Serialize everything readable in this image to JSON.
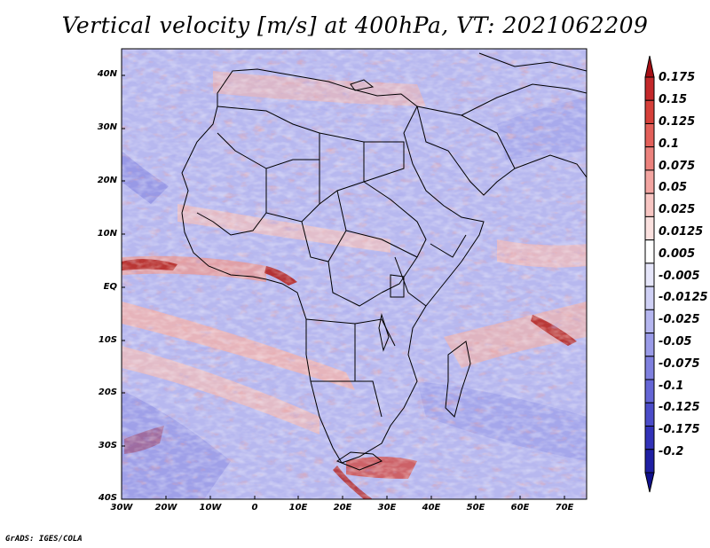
{
  "title": "Vertical velocity [m/s] at 400hPa, VT: 2021062209",
  "credit": "GrADS: IGES/COLA",
  "map": {
    "variable": "Vertical velocity",
    "units": "m/s",
    "level": "400hPa",
    "valid_time": "2021062209",
    "lon_range": [
      -30,
      76
    ],
    "lat_range": [
      -40,
      44
    ],
    "lat_ticks": [
      "40N",
      "30N",
      "20N",
      "10N",
      "EQ",
      "10S",
      "20S",
      "30S",
      "40S"
    ],
    "lon_ticks": [
      "30W",
      "20W",
      "10W",
      "0",
      "10E",
      "20E",
      "30E",
      "40E",
      "50E",
      "60E",
      "70E"
    ]
  },
  "colorbar": {
    "labels": [
      "0.175",
      "0.15",
      "0.125",
      "0.1",
      "0.075",
      "0.05",
      "0.025",
      "0.0125",
      "0.005",
      "-0.005",
      "-0.0125",
      "-0.025",
      "-0.05",
      "-0.075",
      "-0.1",
      "-0.125",
      "-0.175",
      "-0.2"
    ],
    "colors": [
      "#a50f15",
      "#c3282a",
      "#d6403a",
      "#e3605a",
      "#ec827d",
      "#f3a5a1",
      "#f8c6c3",
      "#fbe1df",
      "#ffffff",
      "#e6e6fa",
      "#cfd0f5",
      "#b5b6ef",
      "#9a9be8",
      "#7f80df",
      "#6566d6",
      "#4b4cc9",
      "#3232b8",
      "#1f1fa3",
      "#10108c"
    ]
  }
}
